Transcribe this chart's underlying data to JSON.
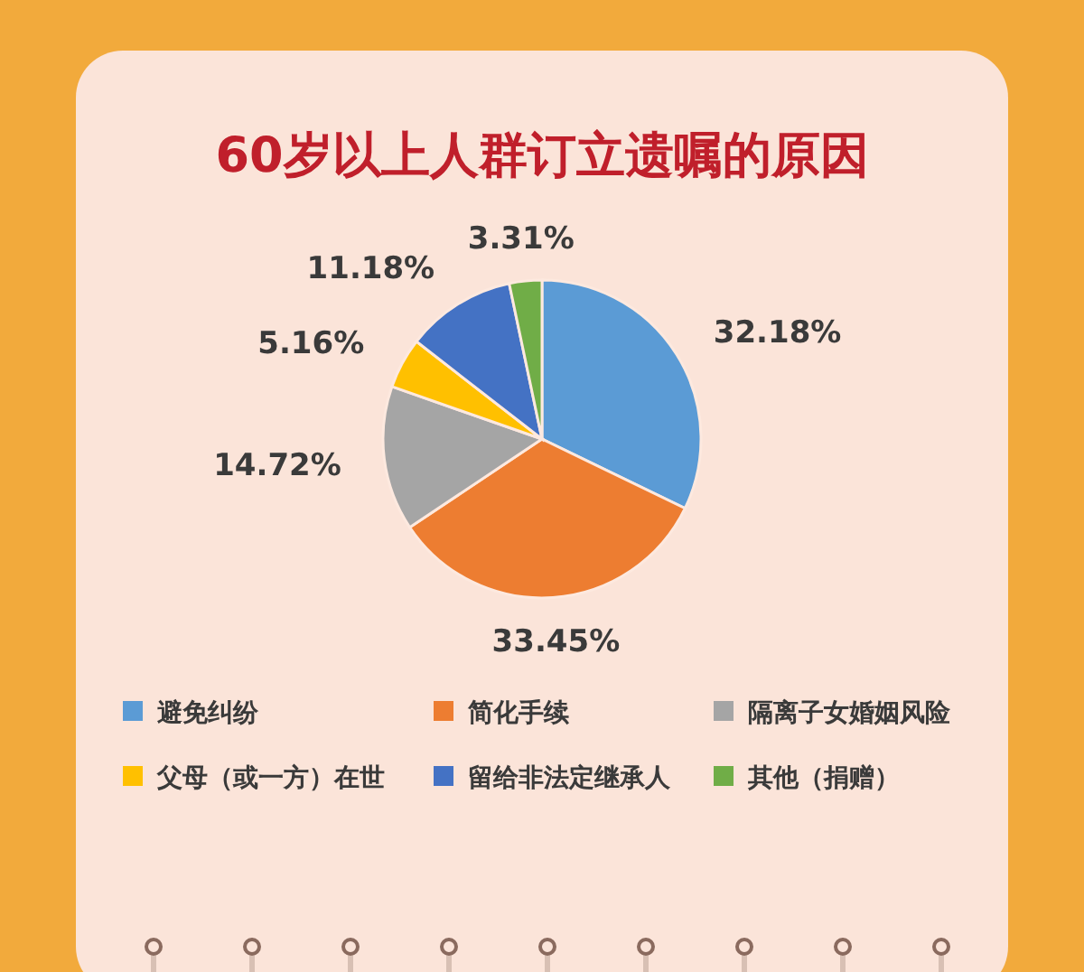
{
  "chart_data": {
    "type": "pie",
    "title": "60岁以上人群订立遗嘱的原因",
    "categories": [
      "避免纠纷",
      "简化手续",
      "隔离子女婚姻风险",
      "父母（或一方）在世",
      "留给非法定继承人",
      "其他（捐赠）"
    ],
    "values": [
      32.18,
      33.45,
      14.72,
      5.16,
      11.18,
      3.31
    ],
    "value_labels": [
      "32.18%",
      "33.45%",
      "14.72%",
      "5.16%",
      "11.18%",
      "3.31%"
    ],
    "colors": [
      "#5b9bd5",
      "#ed7d31",
      "#a5a5a5",
      "#ffc000",
      "#4472c4",
      "#70ad47"
    ],
    "legend": "bottom"
  }
}
